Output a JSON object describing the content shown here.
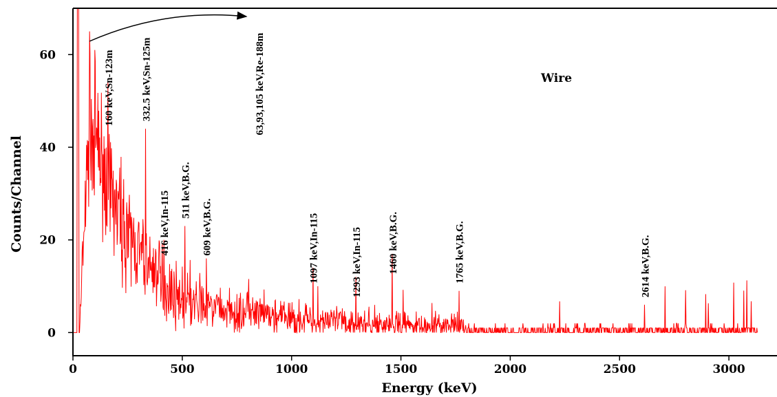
{
  "chart_data": {
    "type": "line",
    "title": "",
    "xlabel": "Energy (keV)",
    "ylabel": "Counts/Channel",
    "xlim": [
      0,
      3220
    ],
    "ylim": [
      -5,
      70
    ],
    "x_ticks": [
      0,
      500,
      1000,
      1500,
      2000,
      2500,
      3000
    ],
    "y_ticks": [
      0,
      20,
      40,
      60
    ],
    "grid": false,
    "series_color": "#ff0000",
    "series": [
      {
        "name": "Wire",
        "peaks": [
          {
            "energy": 20,
            "counts": 70
          },
          {
            "energy": 75,
            "counts": 65
          },
          {
            "energy": 100,
            "counts": 61
          },
          {
            "energy": 160,
            "counts": 54
          },
          {
            "energy": 332.5,
            "counts": 44
          },
          {
            "energy": 416,
            "counts": 20
          },
          {
            "energy": 511,
            "counts": 23
          },
          {
            "energy": 609,
            "counts": 16
          },
          {
            "energy": 1097,
            "counts": 14
          },
          {
            "energy": 1120,
            "counts": 10
          },
          {
            "energy": 1293,
            "counts": 12
          },
          {
            "energy": 1460,
            "counts": 17
          },
          {
            "energy": 1765,
            "counts": 9
          },
          {
            "energy": 2614,
            "counts": 6
          }
        ],
        "envelope": [
          {
            "energy": 30,
            "counts": 0
          },
          {
            "energy": 60,
            "counts": 30
          },
          {
            "energy": 80,
            "counts": 45
          },
          {
            "energy": 120,
            "counts": 38
          },
          {
            "energy": 200,
            "counts": 26
          },
          {
            "energy": 300,
            "counts": 17
          },
          {
            "energy": 400,
            "counts": 11
          },
          {
            "energy": 500,
            "counts": 7
          },
          {
            "energy": 700,
            "counts": 4.5
          },
          {
            "energy": 1000,
            "counts": 3
          },
          {
            "energy": 1300,
            "counts": 2
          },
          {
            "energy": 1700,
            "counts": 1.3
          },
          {
            "energy": 2100,
            "counts": 0.8
          },
          {
            "energy": 2600,
            "counts": 0.5
          },
          {
            "energy": 3130,
            "counts": 0.3
          }
        ]
      }
    ],
    "legend": {
      "label": "Wire",
      "placement": "top-right"
    },
    "annotations": [
      {
        "text": "160 keV,Sn-123m",
        "energy": 160,
        "counts": 44
      },
      {
        "text": "332.5 keV,Sn-125m",
        "energy": 332.5,
        "counts": 45
      },
      {
        "text": "63,93,105 keV,Re-188m",
        "energy": 850,
        "counts": 42
      },
      {
        "text": "416 keV,In-115",
        "energy": 416,
        "counts": 16
      },
      {
        "text": "511 keV,B.G.",
        "energy": 511,
        "counts": 24
      },
      {
        "text": "609 keV,B.G.",
        "energy": 609,
        "counts": 16
      },
      {
        "text": "1097 keV,In-115",
        "energy": 1097,
        "counts": 10
      },
      {
        "text": "1293 keV,In-115",
        "energy": 1293,
        "counts": 7
      },
      {
        "text": "1460 keV,B.G.",
        "energy": 1460,
        "counts": 12
      },
      {
        "text": "1765 keV,B.G.",
        "energy": 1765,
        "counts": 10
      },
      {
        "text": "2614 keV,B.G.",
        "energy": 2614,
        "counts": 7
      }
    ]
  }
}
